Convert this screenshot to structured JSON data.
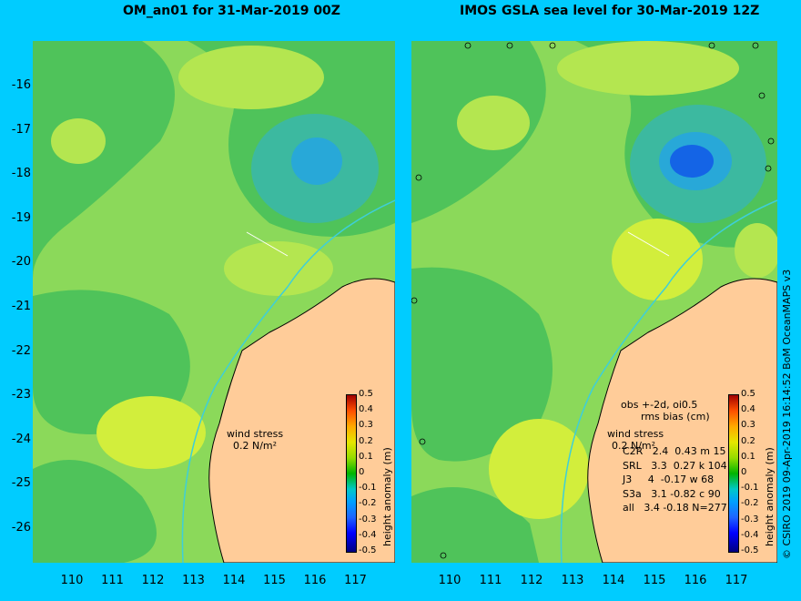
{
  "left_panel": {
    "title": "OM_an01 for 31-Mar-2019 00Z",
    "wind_label": "wind stress",
    "wind_value": "0.2 N/m²",
    "colorbar_title": "height anomaly (m)"
  },
  "right_panel": {
    "title": "IMOS GSLA sea level  for 30-Mar-2019 12Z",
    "wind_label": "wind stress",
    "wind_value": "0.2 N/m²",
    "colorbar_title": "height anomaly (m)",
    "stats_header": [
      "obs +-2d, oi0.5",
      "rms bias (cm)"
    ],
    "stats_rows": [
      "C2R   2.4  0.43 m 15",
      "SRL   3.3  0.27 k 104",
      "J3     4  -0.17 w 68",
      "S3a   3.1 -0.82 c 90",
      "all   3.4 -0.18 N=277"
    ]
  },
  "colorbar_ticks": [
    "0.5",
    "0.4",
    "0.3",
    "0.2",
    "0.1",
    "0",
    "-0.1",
    "-0.2",
    "-0.3",
    "-0.4",
    "-0.5"
  ],
  "y_ticks": [
    "-16",
    "-17",
    "-18",
    "-19",
    "-20",
    "-21",
    "-22",
    "-23",
    "-24",
    "-25",
    "-26"
  ],
  "x_ticks": [
    "110",
    "111",
    "112",
    "113",
    "114",
    "115",
    "116",
    "117"
  ],
  "credit": "© CSIRO 2019   09-Apr-2019 16:14:52 BoM OceanMAPS v3",
  "colors": {
    "background": "#00ccff",
    "land": "#ffcc99",
    "sea_base": "#8bd95a"
  },
  "chart_data": {
    "type": "heatmap",
    "variable": "height anomaly (m)",
    "zlim": [
      -0.5,
      0.5
    ],
    "xlim": [
      109.1,
      118.0
    ],
    "ylim": [
      -27.0,
      -15.1
    ],
    "x_ticks": [
      110,
      111,
      112,
      113,
      114,
      115,
      116,
      117
    ],
    "y_ticks": [
      -16,
      -17,
      -18,
      -19,
      -20,
      -21,
      -22,
      -23,
      -24,
      -25,
      -26
    ],
    "features": [
      {
        "name": "eddy_low",
        "lon": 116.0,
        "lat": -17.8,
        "value": -0.2
      },
      {
        "name": "eddy_high",
        "lon": 114.5,
        "lat": -20.0,
        "value": 0.1
      },
      {
        "name": "coastal_high",
        "lon": 112.2,
        "lat": -24.7,
        "value": 0.1
      }
    ]
  }
}
